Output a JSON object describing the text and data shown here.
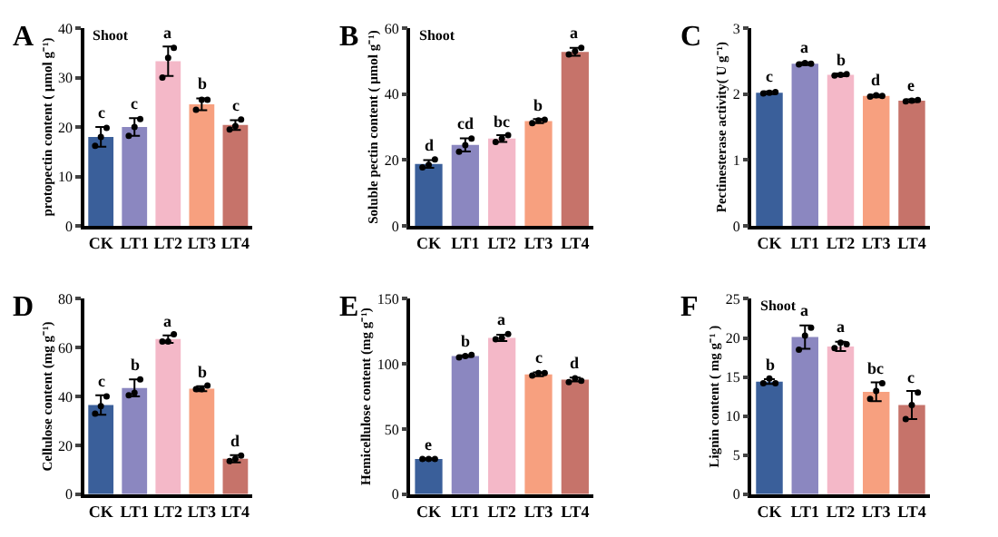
{
  "chart_data": [
    {
      "type": "bar",
      "title": "A",
      "annotations": [
        "Shoot"
      ],
      "ylabel": "protopectin content ( μmol g⁻¹)",
      "categories": [
        "CK",
        "LT1",
        "LT2",
        "LT3",
        "LT4"
      ],
      "ylim": [
        0,
        40
      ],
      "yticks": [
        0,
        10,
        20,
        30,
        40
      ],
      "marker": "circle",
      "series": [
        {
          "colors": [
            "#3a5f9a",
            "#8b87c0",
            "#f4b8c8",
            "#f7a07f",
            "#c6736a"
          ],
          "values": [
            18,
            20,
            33.3,
            24.6,
            20.4
          ],
          "errors": [
            2,
            1.8,
            3,
            1.2,
            1
          ],
          "value_labels": [
            "c",
            "c",
            "a",
            "b",
            "c"
          ]
        },
        {
          "type": "scatter",
          "color": "#000000",
          "x": [
            "CK",
            "CK",
            "CK",
            "LT1",
            "LT1",
            "LT1",
            "LT2",
            "LT2",
            "LT2",
            "LT3",
            "LT3",
            "LT3",
            "LT4",
            "LT4",
            "LT4"
          ],
          "values": [
            16.2,
            18,
            19.8,
            18.2,
            20,
            21.6,
            30,
            34,
            36,
            23.5,
            25.5,
            25.5,
            19.5,
            20.2,
            21.5
          ]
        }
      ]
    },
    {
      "type": "bar",
      "title": "B",
      "annotations": [
        "Shoot"
      ],
      "ylabel": "Soluble pectin content ( μmol g⁻¹)",
      "categories": [
        "CK",
        "LT1",
        "LT2",
        "LT3",
        "LT4"
      ],
      "ylim": [
        0,
        60
      ],
      "yticks": [
        0,
        20,
        40,
        60
      ],
      "marker": "circle",
      "series": [
        {
          "colors": [
            "#3a5f9a",
            "#8b87c0",
            "#f4b8c8",
            "#f7a07f",
            "#c6736a"
          ],
          "values": [
            18.8,
            24.6,
            26.5,
            31.8,
            52.8
          ],
          "errors": [
            1.2,
            2,
            1,
            0.6,
            1.2
          ],
          "value_labels": [
            "d",
            "cd",
            "bc",
            "b",
            "a"
          ]
        },
        {
          "type": "scatter",
          "color": "#000000",
          "x": [
            "CK",
            "CK",
            "CK",
            "LT1",
            "LT1",
            "LT1",
            "LT2",
            "LT2",
            "LT2",
            "LT3",
            "LT3",
            "LT3",
            "LT4",
            "LT4",
            "LT4"
          ],
          "values": [
            17.8,
            18.5,
            20.2,
            22.5,
            24.5,
            26.5,
            25.5,
            26.5,
            27.5,
            31.2,
            32,
            32.2,
            52,
            53,
            54
          ]
        }
      ]
    },
    {
      "type": "bar",
      "title": "C",
      "ylabel": "Pectinesterase activity( U g⁻¹)",
      "categories": [
        "CK",
        "LT1",
        "LT2",
        "LT3",
        "LT4"
      ],
      "ylim": [
        0,
        3
      ],
      "yticks": [
        0,
        1,
        2,
        3
      ],
      "marker": "circle",
      "series": [
        {
          "colors": [
            "#3a5f9a",
            "#8b87c0",
            "#f4b8c8",
            "#f7a07f",
            "#c6736a"
          ],
          "values": [
            2.02,
            2.46,
            2.29,
            1.97,
            1.9
          ],
          "errors": [
            0.02,
            0.02,
            0.02,
            0.02,
            0.02
          ],
          "value_labels": [
            "c",
            "a",
            "b",
            "d",
            "e"
          ]
        },
        {
          "type": "scatter",
          "color": "#000000",
          "x": [
            "CK",
            "CK",
            "CK",
            "LT1",
            "LT1",
            "LT1",
            "LT2",
            "LT2",
            "LT2",
            "LT3",
            "LT3",
            "LT3",
            "LT4",
            "LT4",
            "LT4"
          ],
          "values": [
            2.01,
            2.02,
            2.03,
            2.45,
            2.47,
            2.46,
            2.28,
            2.29,
            2.3,
            1.96,
            1.98,
            1.97,
            1.89,
            1.9,
            1.91
          ]
        }
      ]
    },
    {
      "type": "bar",
      "title": "D",
      "ylabel": "Cellulose content (mg g⁻¹)",
      "categories": [
        "CK",
        "LT1",
        "LT2",
        "LT3",
        "LT4"
      ],
      "ylim": [
        0,
        80
      ],
      "yticks": [
        0,
        20,
        40,
        60,
        80
      ],
      "marker": "circle",
      "series": [
        {
          "colors": [
            "#3a5f9a",
            "#8b87c0",
            "#f4b8c8",
            "#f7a07f",
            "#c6736a"
          ],
          "values": [
            36.5,
            43.5,
            63.5,
            43.2,
            14.5
          ],
          "errors": [
            4,
            3.5,
            1.5,
            1,
            1.5
          ],
          "value_labels": [
            "c",
            "b",
            "a",
            "b",
            "d"
          ]
        },
        {
          "type": "scatter",
          "color": "#000000",
          "x": [
            "CK",
            "CK",
            "CK",
            "LT1",
            "LT1",
            "LT1",
            "LT2",
            "LT2",
            "LT2",
            "LT3",
            "LT3",
            "LT3",
            "LT4",
            "LT4",
            "LT4"
          ],
          "values": [
            33,
            36,
            40,
            40.5,
            41.5,
            47,
            62.5,
            62.5,
            65.5,
            43,
            43,
            44.5,
            13.5,
            14.5,
            15.8
          ]
        }
      ]
    },
    {
      "type": "bar",
      "title": "E",
      "ylabel": "Hemicellulose content (mg g⁻¹)",
      "categories": [
        "CK",
        "LT1",
        "LT2",
        "LT3",
        "LT4"
      ],
      "ylim": [
        0,
        150
      ],
      "yticks": [
        0,
        50,
        100,
        150
      ],
      "marker": "circle",
      "series": [
        {
          "colors": [
            "#3a5f9a",
            "#8b87c0",
            "#f4b8c8",
            "#f7a07f",
            "#c6736a"
          ],
          "values": [
            27,
            106,
            120,
            92,
            88
          ],
          "errors": [
            0.5,
            0.6,
            2.5,
            1.5,
            1.5
          ],
          "value_labels": [
            "e",
            "b",
            "a",
            "c",
            "d"
          ]
        },
        {
          "type": "scatter",
          "color": "#000000",
          "x": [
            "CK",
            "CK",
            "CK",
            "LT1",
            "LT1",
            "LT1",
            "LT2",
            "LT2",
            "LT2",
            "LT3",
            "LT3",
            "LT3",
            "LT4",
            "LT4",
            "LT4"
          ],
          "values": [
            27,
            27,
            27,
            105,
            106,
            107,
            119,
            120,
            123,
            91,
            93,
            93,
            86,
            89,
            87
          ]
        }
      ]
    },
    {
      "type": "bar",
      "title": "F",
      "annotations": [
        "Shoot"
      ],
      "ylabel": "Lignin content ( mg g⁻¹ )",
      "categories": [
        "CK",
        "LT1",
        "LT2",
        "LT3",
        "LT4"
      ],
      "ylim": [
        0,
        25
      ],
      "yticks": [
        0,
        5,
        10,
        15,
        20,
        25
      ],
      "marker": "circle",
      "series": [
        {
          "colors": [
            "#3a5f9a",
            "#8b87c0",
            "#f4b8c8",
            "#f7a07f",
            "#c6736a"
          ],
          "values": [
            14.4,
            20.1,
            18.9,
            13.1,
            11.4
          ],
          "errors": [
            0.3,
            1.5,
            0.6,
            1.2,
            1.8
          ],
          "value_labels": [
            "b",
            "a",
            "a",
            "bc",
            "c"
          ]
        },
        {
          "type": "scatter",
          "color": "#000000",
          "x": [
            "CK",
            "CK",
            "CK",
            "LT1",
            "LT1",
            "LT1",
            "LT2",
            "LT2",
            "LT2",
            "LT3",
            "LT3",
            "LT3",
            "LT4",
            "LT4",
            "LT4"
          ],
          "values": [
            14.2,
            14.8,
            14.2,
            18.5,
            20.3,
            21.3,
            18.7,
            19.4,
            19.2,
            12.2,
            13.2,
            14.2,
            9.6,
            11.4,
            13
          ]
        }
      ]
    }
  ]
}
